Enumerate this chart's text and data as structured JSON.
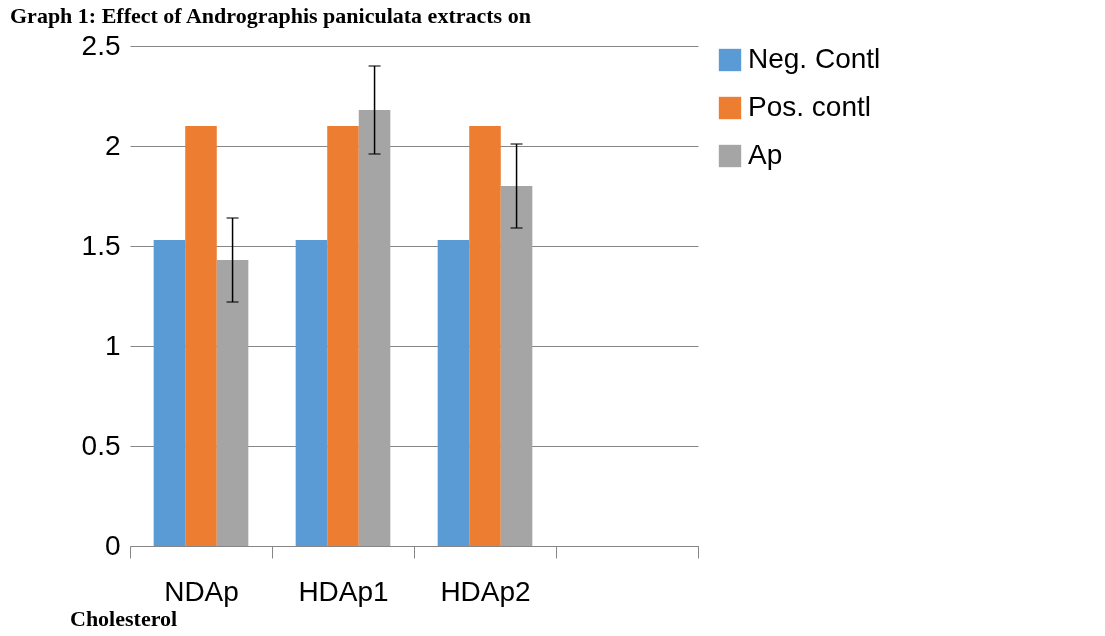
{
  "chart_data": {
    "type": "bar",
    "title": "Graph 1: Effect of Andrographis paniculata extracts on",
    "categories": [
      "NDAp",
      "HDAp1",
      "HDAp2",
      null
    ],
    "series": [
      {
        "name": "Neg. Contl",
        "color": "#5b9bd5",
        "values": [
          1.53,
          1.53,
          1.53,
          null
        ]
      },
      {
        "name": "Pos. contl",
        "color": "#ed7d31",
        "values": [
          2.1,
          2.1,
          2.1,
          null
        ]
      },
      {
        "name": "Ap",
        "color": "#a5a5a5",
        "values": [
          1.43,
          2.18,
          1.8,
          null
        ],
        "errors": [
          0.21,
          0.22,
          0.21,
          null
        ]
      }
    ],
    "ylim": [
      0,
      2.5
    ],
    "yticks": [
      0,
      0.5,
      1,
      1.5,
      2,
      2.5
    ],
    "grid": "y",
    "legend": "right",
    "annotations": [
      "Cholesterol"
    ]
  }
}
